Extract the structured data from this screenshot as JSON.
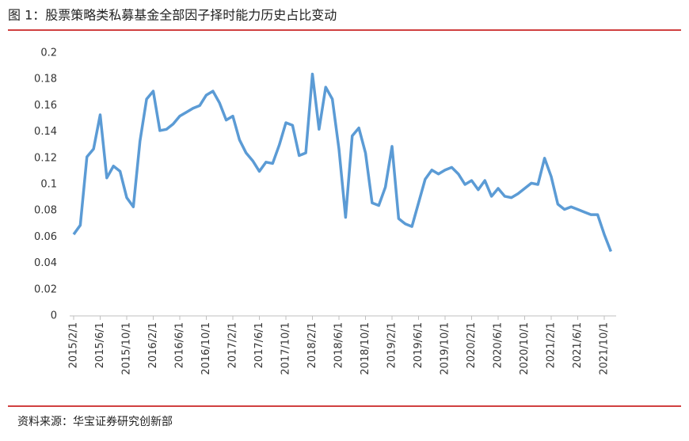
{
  "title": "图 1：股票策略类私募基金全部因子择时能力历史占比变动",
  "source": "资料来源：华宝证券研究创新部",
  "chart_data": {
    "type": "line",
    "color": "#5b9bd5",
    "categories": [
      "2015/2/1",
      null,
      null,
      null,
      "2015/6/1",
      null,
      null,
      null,
      "2015/10/1",
      null,
      null,
      null,
      "2016/2/1",
      null,
      null,
      null,
      "2016/6/1",
      null,
      null,
      null,
      "2016/10/1",
      null,
      null,
      null,
      "2017/2/1",
      null,
      null,
      null,
      "2017/6/1",
      null,
      null,
      null,
      "2017/10/1",
      null,
      null,
      null,
      "2018/2/1",
      null,
      null,
      null,
      "2018/6/1",
      null,
      null,
      null,
      "2018/10/1",
      null,
      null,
      null,
      "2019/2/1",
      null,
      null,
      null,
      "2019/6/1",
      null,
      null,
      null,
      "2019/10/1",
      null,
      null,
      null,
      "2020/2/1",
      null,
      null,
      null,
      "2020/6/1",
      null,
      null,
      null,
      "2020/10/1",
      null,
      null,
      null,
      "2021/2/1",
      null,
      null,
      null,
      "2021/6/1",
      null,
      null,
      null,
      "2021/10/1",
      null
    ],
    "values": [
      0.062,
      0.069,
      0.121,
      0.127,
      0.153,
      0.105,
      0.114,
      0.11,
      0.09,
      0.083,
      0.133,
      0.165,
      0.171,
      0.141,
      0.142,
      0.146,
      0.152,
      0.155,
      0.158,
      0.16,
      0.168,
      0.171,
      0.162,
      0.149,
      0.152,
      0.134,
      0.124,
      0.118,
      0.11,
      0.117,
      0.116,
      0.13,
      0.147,
      0.145,
      0.122,
      0.124,
      0.184,
      0.142,
      0.174,
      0.165,
      0.127,
      0.075,
      0.137,
      0.143,
      0.124,
      0.086,
      0.084,
      0.098,
      0.129,
      0.074,
      0.07,
      0.068,
      0.086,
      0.104,
      0.111,
      0.108,
      0.111,
      0.113,
      0.108,
      0.1,
      0.103,
      0.096,
      0.103,
      0.091,
      0.097,
      0.091,
      0.09,
      0.093,
      0.097,
      0.101,
      0.1,
      0.12,
      0.106,
      0.085,
      0.081,
      0.083,
      0.081,
      0.079,
      0.077,
      0.077,
      0.062,
      0.049
    ],
    "ylim": [
      0,
      0.2
    ],
    "yticks": [
      0,
      0.02,
      0.04,
      0.06,
      0.08,
      0.1,
      0.12,
      0.14,
      0.16,
      0.18,
      0.2
    ]
  }
}
